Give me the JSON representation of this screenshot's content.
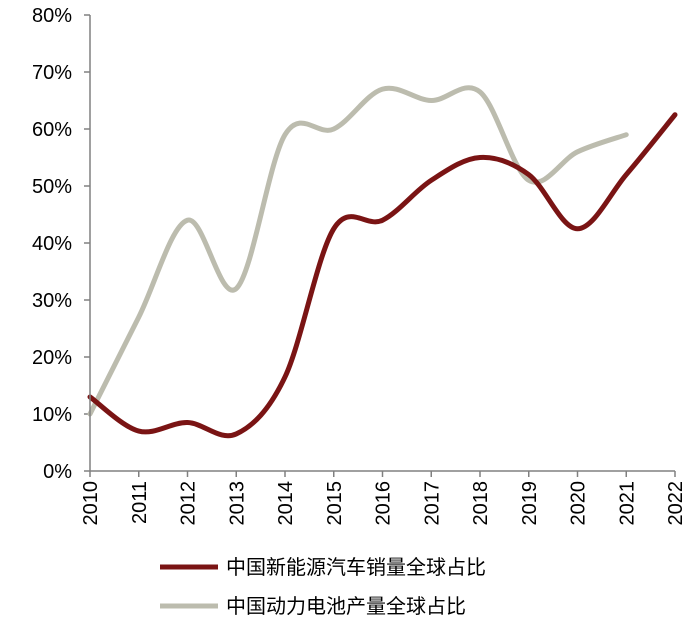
{
  "chart_data": {
    "type": "line",
    "title": "",
    "xlabel": "",
    "ylabel": "",
    "ylim": [
      0,
      80
    ],
    "y_ticks": [
      "0%",
      "10%",
      "20%",
      "30%",
      "40%",
      "50%",
      "60%",
      "70%",
      "80%"
    ],
    "y_tick_values": [
      0,
      10,
      20,
      30,
      40,
      50,
      60,
      70,
      80
    ],
    "categories": [
      "2010",
      "2011",
      "2012",
      "2013",
      "2014",
      "2015",
      "2016",
      "2017",
      "2018",
      "2019",
      "2020",
      "2021",
      "2022"
    ],
    "grid": false,
    "legend_position": "bottom",
    "series": [
      {
        "name": "中国新能源汽车销量全球占比",
        "color": "#7a1414",
        "values": [
          13,
          7,
          8.5,
          6.5,
          16.5,
          42.5,
          44,
          51,
          55,
          52,
          42.5,
          52,
          62.5
        ]
      },
      {
        "name": "中国动力电池产量全球占比",
        "color": "#bcbcae",
        "values": [
          10,
          27,
          44,
          32,
          59,
          60,
          67,
          65,
          66.5,
          51,
          56,
          59,
          null
        ]
      }
    ]
  }
}
